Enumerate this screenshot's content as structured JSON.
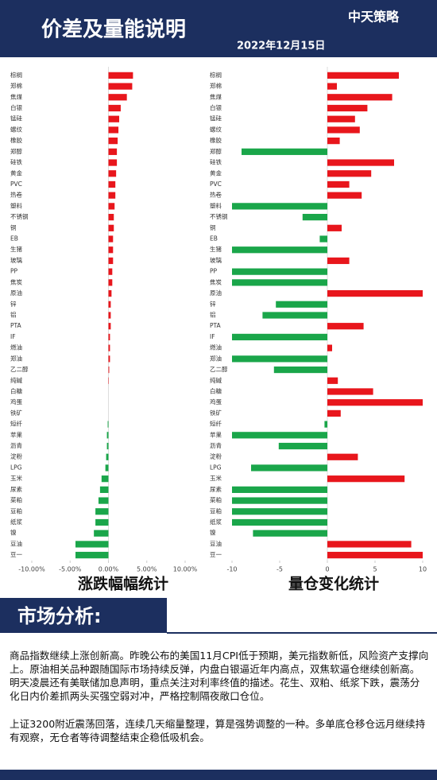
{
  "header": {
    "title": "价差及量能说明",
    "date": "2022年12月15日",
    "logo": "中天策略"
  },
  "chart_data": [
    {
      "type": "hbar",
      "caption": "涨跌幅幅统计",
      "categories": [
        "棕榈",
        "郑棉",
        "焦煤",
        "白银",
        "锰硅",
        "螺纹",
        "橡胶",
        "郑醇",
        "硅铁",
        "黄金",
        "PVC",
        "热卷",
        "塑料",
        "不锈钢",
        "铜",
        "EB",
        "生猪",
        "玻璃",
        "PP",
        "焦炭",
        "原油",
        "锌",
        "铝",
        "PTA",
        "IF",
        "燃油",
        "郑油",
        "乙二醇",
        "纯碱",
        "白糖",
        "鸡蛋",
        "铁矿",
        "短纤",
        "苹果",
        "沥青",
        "淀粉",
        "LPG",
        "玉米",
        "尿素",
        "菜粕",
        "豆粕",
        "纸浆",
        "镍",
        "豆油",
        "豆一"
      ],
      "values": [
        3.2,
        3.1,
        2.4,
        1.6,
        1.4,
        1.3,
        1.2,
        1.1,
        1.1,
        1.0,
        0.9,
        0.9,
        0.8,
        0.7,
        0.7,
        0.6,
        0.6,
        0.6,
        0.5,
        0.5,
        0.4,
        0.3,
        0.3,
        0.3,
        0.2,
        0.2,
        0.2,
        0.1,
        0.05,
        0,
        0,
        0,
        -0.1,
        -0.2,
        -0.2,
        -0.3,
        -0.4,
        -0.9,
        -1.1,
        -1.3,
        -1.7,
        -1.7,
        -1.9,
        -4.3,
        -4.3
      ],
      "xlim": [
        -10,
        10
      ],
      "xticks": [
        {
          "value": -10,
          "label": "-10.00%"
        },
        {
          "value": -5,
          "label": "-5.00%"
        },
        {
          "value": 0,
          "label": "0.00%"
        },
        {
          "value": 5,
          "label": "5.00%"
        },
        {
          "value": 10,
          "label": "10.00%"
        }
      ],
      "positive_color": "#e8161c",
      "negative_color": "#1aa64a"
    },
    {
      "type": "hbar",
      "caption": "量仓变化统计",
      "categories": [
        "棕榈",
        "郑棉",
        "焦煤",
        "白银",
        "锰硅",
        "螺纹",
        "橡胶",
        "郑醇",
        "硅铁",
        "黄金",
        "PVC",
        "热卷",
        "塑料",
        "不锈钢",
        "铜",
        "EB",
        "生猪",
        "玻璃",
        "PP",
        "焦炭",
        "原油",
        "锌",
        "铝",
        "PTA",
        "IF",
        "燃油",
        "郑油",
        "乙二醇",
        "纯碱",
        "白糖",
        "鸡蛋",
        "铁矿",
        "短纤",
        "苹果",
        "沥青",
        "淀粉",
        "LPG",
        "玉米",
        "尿素",
        "菜粕",
        "豆粕",
        "纸浆",
        "镍",
        "豆油",
        "豆一"
      ],
      "values": [
        7.5,
        1,
        6.8,
        4.2,
        2.9,
        3.4,
        1.3,
        -9,
        7,
        4.6,
        2.3,
        3.6,
        -10,
        -2.6,
        1.5,
        -0.8,
        -10,
        2.3,
        -10,
        -10,
        10,
        -5.4,
        -6.8,
        3.8,
        -10,
        0.5,
        -10,
        -5.6,
        1.1,
        4.8,
        10,
        1.4,
        -0.3,
        -10,
        -5.1,
        3.2,
        -8,
        8.1,
        -10,
        -10,
        -10,
        -10,
        -7.8,
        8.8,
        10
      ],
      "xlim": [
        -10,
        10
      ],
      "xticks": [
        -10,
        -5,
        0,
        5,
        10
      ],
      "positive_color": "#e8161c",
      "negative_color": "#1aa64a"
    }
  ],
  "analysis": {
    "title": "市场分析:",
    "paragraphs": [
      "商品指数继续上涨创新高。昨晚公布的美国11月CPI低于预期，美元指数新低，风险资产支撑向上。原油相关品种跟随国际市场持续反弹，内盘白银逼近年内高点，双焦软逼仓继续创新高。明天凌晨还有美联储加息声明，重点关注对利率终值的描述。花生、双粕、纸浆下跌，震荡分化日内价差抓两头买强空弱对冲，严格控制隔夜敞口仓位。",
      "上证3200附近震荡回落，连续几天缩量整理，算是强势调整的一种。多单底仓移仓远月继续持有观察，无仓者等待调整结束企稳低吸机会。"
    ]
  }
}
